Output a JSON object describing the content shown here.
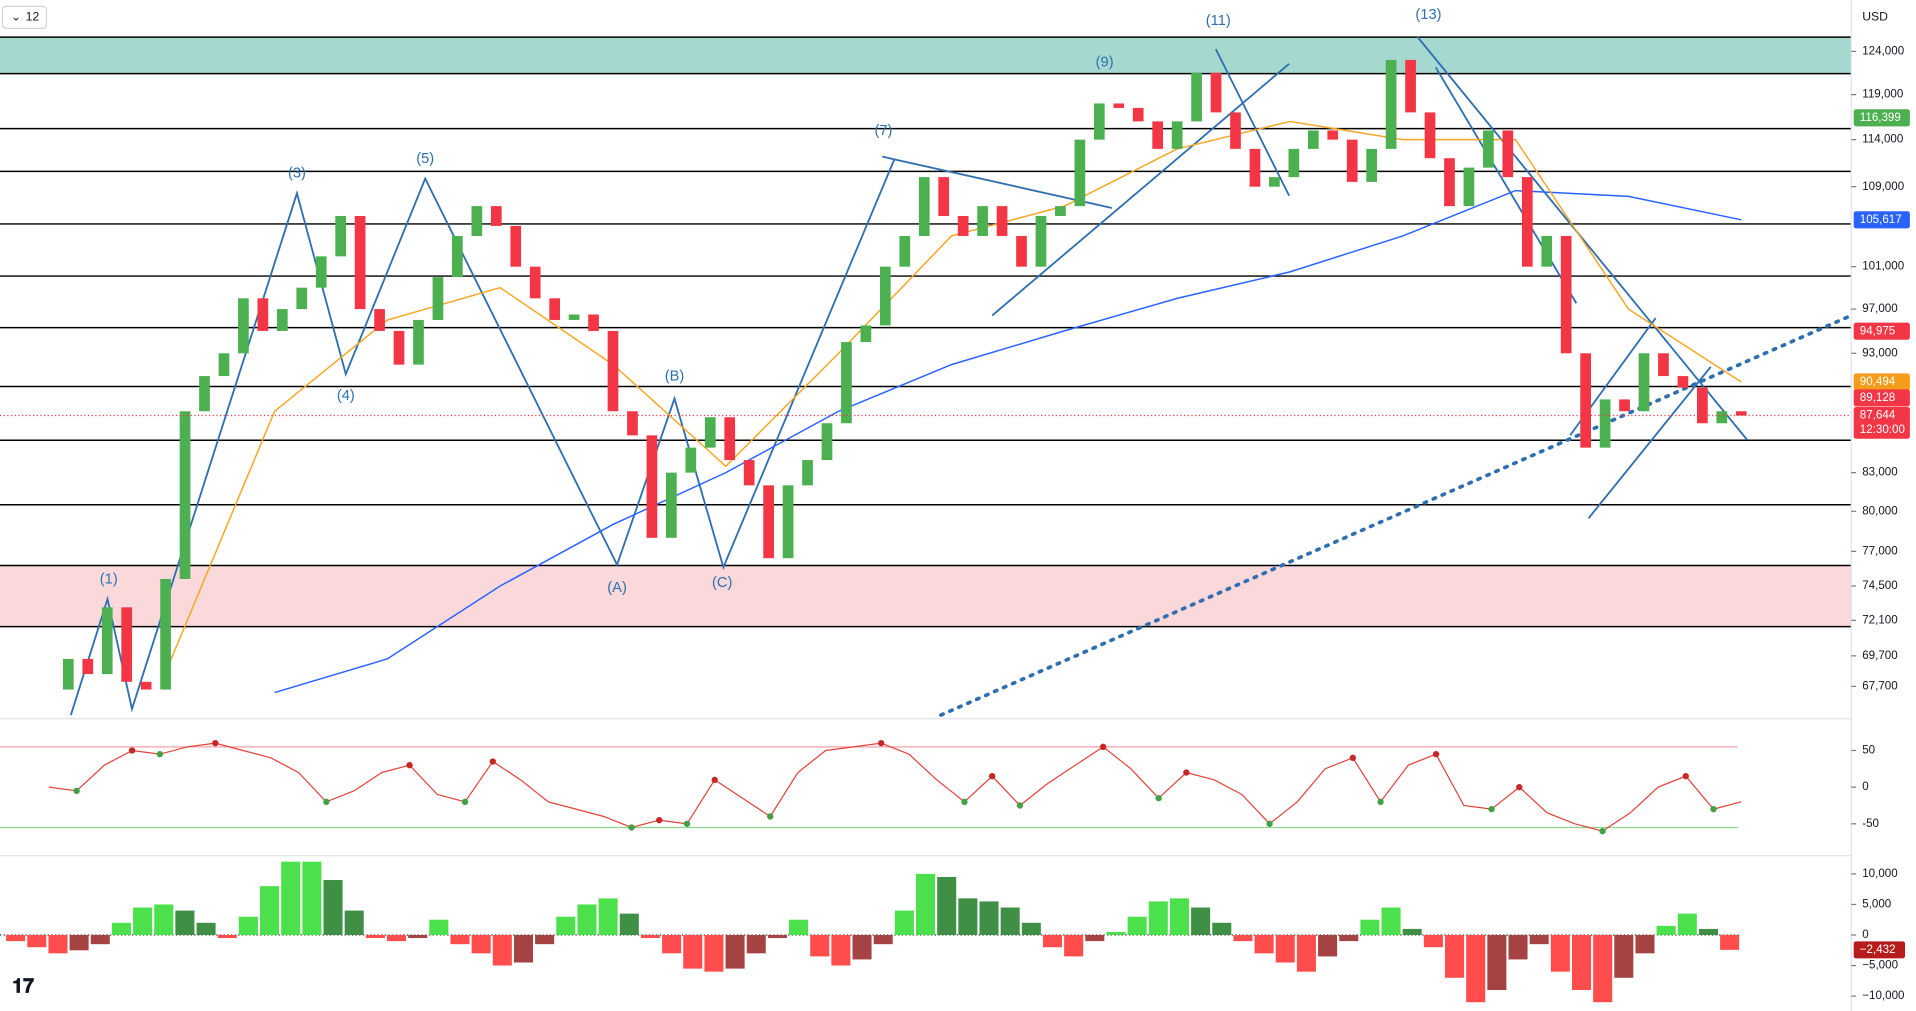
{
  "chart_data": {
    "type": "candlestick",
    "interval": "12",
    "currency": "USD",
    "log_scale": true,
    "ylim": [
      65800,
      130200
    ],
    "yticks": [
      {
        "value": 124000,
        "label": "124,000"
      },
      {
        "value": 119000,
        "label": "119,000"
      },
      {
        "value": 114000,
        "label": "114,000"
      },
      {
        "value": 109000,
        "label": "109,000"
      },
      {
        "value": 101000,
        "label": "101,000"
      },
      {
        "value": 97000,
        "label": "97,000"
      },
      {
        "value": 93000,
        "label": "93,000"
      },
      {
        "value": 83000,
        "label": "83,000"
      },
      {
        "value": 80000,
        "label": "80,000"
      },
      {
        "value": 77000,
        "label": "77,000"
      },
      {
        "value": 74500,
        "label": "74,500"
      },
      {
        "value": 72100,
        "label": "72,100"
      },
      {
        "value": 69700,
        "label": "69,700"
      },
      {
        "value": 67700,
        "label": "67,700"
      }
    ],
    "up_color": "#4caf50",
    "down_color": "#f23645",
    "values": [
      67500,
      69500,
      68500,
      73000,
      68000,
      67500,
      75000,
      88000,
      91000,
      93000,
      98000,
      95000,
      97000,
      99000,
      102000,
      106000,
      97000,
      95000,
      92000,
      96000,
      100000,
      104000,
      107000,
      105000,
      101000,
      98000,
      96000,
      96500,
      95000,
      88000,
      86000,
      78000,
      83000,
      85000,
      87500,
      84000,
      82000,
      76500,
      82000,
      84000,
      87000,
      94000,
      95500,
      101000,
      104000,
      110000,
      106000,
      104000,
      107000,
      104000,
      101000,
      106000,
      107000,
      114000,
      118000,
      117500,
      116000,
      113000,
      116000,
      121500,
      117000,
      113000,
      109000,
      110000,
      113000,
      115000,
      114000,
      109500,
      113000,
      123000,
      117000,
      112000,
      107000,
      111000,
      115000,
      110000,
      101000,
      104000,
      93000,
      85000,
      89000,
      88000,
      93000,
      91000,
      90000,
      87000,
      88000,
      87644
    ],
    "overlays": [
      {
        "name": "MA200",
        "color": "#2962ff",
        "values": [
          null,
          null,
          67300,
          69500,
          74500,
          79000,
          83000,
          88000,
          92000,
          95000,
          98000,
          100500,
          104000,
          108600,
          108000,
          105617
        ]
      },
      {
        "name": "MA50",
        "color": "#f5a623",
        "values": [
          null,
          68000,
          88000,
          96000,
          99000,
          92000,
          83500,
          93000,
          104000,
          107000,
          113000,
          116000,
          114000,
          114000,
          97000,
          90494
        ]
      }
    ],
    "levels": [
      115200,
      110600,
      105200,
      100100,
      95300,
      90100,
      85600,
      80500
    ],
    "zones": [
      {
        "from": 121400,
        "to": 125700,
        "color": "#a5d9cf"
      },
      {
        "from": 71670,
        "to": 75970,
        "color": "#fbd9db"
      }
    ],
    "price_labels": [
      {
        "value": 116399,
        "label": "116,399",
        "color": "#4caf50"
      },
      {
        "value": 105617,
        "label": "105,617",
        "color": "#2962ff"
      },
      {
        "value": 94975,
        "label": "94,975",
        "color": "#f23645"
      },
      {
        "value": 90494,
        "label": "90,494",
        "color": "#f59c1a"
      },
      {
        "value": 89128,
        "label": "89,128",
        "color": "#f23645"
      },
      {
        "value": 87644,
        "label": "87,644",
        "color": "#f23645",
        "time": "12:30:00"
      }
    ],
    "wave_labels": [
      "(1)",
      "(3)",
      "(4)",
      "(5)",
      "(A)",
      "(B)",
      "(C)",
      "(7)",
      "(9)",
      "(11)",
      "(13)"
    ],
    "oscillator": {
      "ylim": [
        -90,
        90
      ],
      "yticks": [
        50,
        0,
        -50
      ],
      "bands": [
        {
          "value": 55,
          "color": "#f7a1a8"
        },
        {
          "value": -55,
          "color": "#8bd48e"
        }
      ],
      "values": [
        0,
        -5,
        30,
        50,
        45,
        55,
        60,
        50,
        40,
        20,
        -20,
        -5,
        20,
        30,
        -10,
        -20,
        35,
        10,
        -20,
        -30,
        -40,
        -55,
        -45,
        -50,
        10,
        -15,
        -40,
        20,
        50,
        55,
        60,
        45,
        10,
        -20,
        15,
        -25,
        5,
        30,
        55,
        25,
        -15,
        20,
        10,
        -10,
        -50,
        -20,
        25,
        40,
        -20,
        30,
        45,
        -25,
        -30,
        0,
        -35,
        -50,
        -60,
        -35,
        0,
        15,
        -30,
        -20
      ]
    },
    "histogram": {
      "ylim": [
        -12000,
        12000
      ],
      "yticks": [
        {
          "value": 10000,
          "label": "10,000"
        },
        {
          "value": 5000,
          "label": "5,000"
        },
        {
          "value": 0,
          "label": "0"
        },
        {
          "value": -5000,
          "label": "−5,000"
        },
        {
          "value": -10000,
          "label": "−10,000"
        }
      ],
      "last_label": "−2,432",
      "values": [
        -1000,
        -2000,
        -3000,
        -2500,
        -1500,
        2000,
        4500,
        5000,
        4000,
        2000,
        -500,
        3000,
        8000,
        12000,
        12000,
        9000,
        4000,
        -500,
        -1000,
        -500,
        2500,
        -1500,
        -3000,
        -5000,
        -4500,
        -1500,
        3000,
        5000,
        6000,
        3500,
        -500,
        -3000,
        -5500,
        -6000,
        -5500,
        -3000,
        -500,
        2500,
        -3500,
        -5000,
        -4000,
        -1500,
        4000,
        10000,
        9500,
        6000,
        5500,
        4500,
        2000,
        -2000,
        -3500,
        -1000,
        500,
        3000,
        5500,
        6000,
        4500,
        2000,
        -1000,
        -3000,
        -4500,
        -6000,
        -3500,
        -1000,
        2500,
        4500,
        1000,
        -2000,
        -7000,
        -11000,
        -9000,
        -4000,
        -1500,
        -6000,
        -9000,
        -11000,
        -7000,
        -3000,
        1500,
        3500,
        1000,
        -2432
      ]
    }
  }
}
